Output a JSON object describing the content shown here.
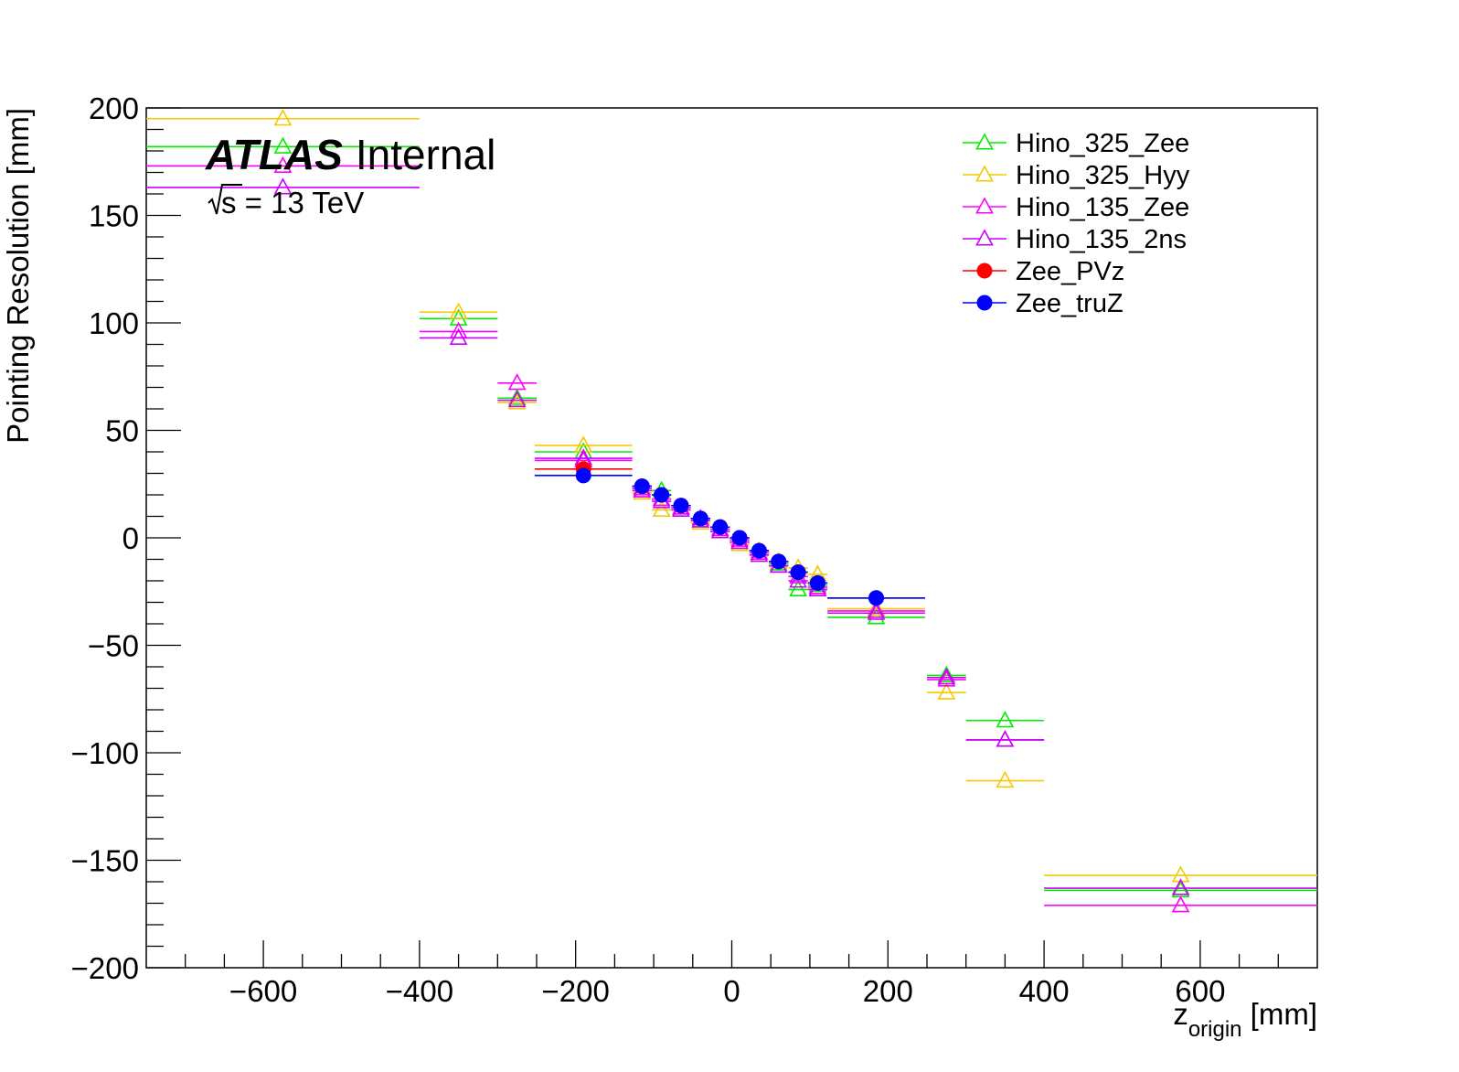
{
  "chart_data": {
    "type": "scatter",
    "title": "",
    "xlabel": "z",
    "xlabel_sub": "origin",
    "xlabel_unit": " [mm]",
    "ylabel": "Pointing Resolution [mm]",
    "xlim": [
      -750,
      750
    ],
    "ylim": [
      -200,
      200
    ],
    "x_ticks": [
      -600,
      -400,
      -200,
      0,
      200,
      400,
      600
    ],
    "x_tick_labels": [
      "−600",
      "−400",
      "−200",
      "0",
      "200",
      "400",
      "600"
    ],
    "y_ticks": [
      -200,
      -150,
      -100,
      -50,
      0,
      50,
      100,
      150,
      200
    ],
    "y_tick_labels": [
      "−200",
      "−150",
      "−100",
      "−50",
      "0",
      "50",
      "100",
      "150",
      "200"
    ],
    "grid": false,
    "legend_position": "top-right",
    "annotations": {
      "experiment": "ATLAS",
      "status": "Internal",
      "energy": "s = 13 TeV"
    },
    "series": [
      {
        "name": "Hino_325_Zee",
        "color": "#00ee00",
        "marker": "open-triangle",
        "points": [
          {
            "x": -575,
            "xerr": 175,
            "y": 182
          },
          {
            "x": -350,
            "xerr": 50,
            "y": 102
          },
          {
            "x": -275,
            "xerr": 25,
            "y": 65
          },
          {
            "x": -190,
            "xerr": 62.5,
            "y": 40
          },
          {
            "x": -115,
            "xerr": 12.5,
            "y": 23
          },
          {
            "x": -90,
            "xerr": 12.5,
            "y": 22
          },
          {
            "x": -65,
            "xerr": 12.5,
            "y": 14
          },
          {
            "x": -40,
            "xerr": 12.5,
            "y": 8
          },
          {
            "x": -15,
            "xerr": 12.5,
            "y": 4
          },
          {
            "x": 10,
            "xerr": 12.5,
            "y": -2
          },
          {
            "x": 35,
            "xerr": 12.5,
            "y": -7
          },
          {
            "x": 60,
            "xerr": 12.5,
            "y": -12
          },
          {
            "x": 85,
            "xerr": 12.5,
            "y": -24
          },
          {
            "x": 110,
            "xerr": 12.5,
            "y": -22
          },
          {
            "x": 185,
            "xerr": 62.5,
            "y": -37
          },
          {
            "x": 275,
            "xerr": 25,
            "y": -64
          },
          {
            "x": 350,
            "xerr": 50,
            "y": -85
          },
          {
            "x": 575,
            "xerr": 175,
            "y": -164
          }
        ]
      },
      {
        "name": "Hino_325_Hyy",
        "color": "#f5c800",
        "marker": "open-triangle",
        "points": [
          {
            "x": -575,
            "xerr": 175,
            "y": 195
          },
          {
            "x": -350,
            "xerr": 50,
            "y": 105
          },
          {
            "x": -275,
            "xerr": 25,
            "y": 63
          },
          {
            "x": -190,
            "xerr": 62.5,
            "y": 43
          },
          {
            "x": -115,
            "xerr": 12.5,
            "y": 21
          },
          {
            "x": -90,
            "xerr": 12.5,
            "y": 13
          },
          {
            "x": -65,
            "xerr": 12.5,
            "y": 13
          },
          {
            "x": -40,
            "xerr": 12.5,
            "y": 7
          },
          {
            "x": -15,
            "xerr": 12.5,
            "y": 3
          },
          {
            "x": 10,
            "xerr": 12.5,
            "y": -3
          },
          {
            "x": 35,
            "xerr": 12.5,
            "y": -6
          },
          {
            "x": 60,
            "xerr": 12.5,
            "y": -11
          },
          {
            "x": 85,
            "xerr": 12.5,
            "y": -14
          },
          {
            "x": 110,
            "xerr": 12.5,
            "y": -17
          },
          {
            "x": 185,
            "xerr": 62.5,
            "y": -33
          },
          {
            "x": 275,
            "xerr": 25,
            "y": -72
          },
          {
            "x": 350,
            "xerr": 50,
            "y": -113
          },
          {
            "x": 575,
            "xerr": 175,
            "y": -157
          }
        ]
      },
      {
        "name": "Hino_135_Zee",
        "color": "#ff00ff",
        "marker": "open-triangle",
        "points": [
          {
            "x": -575,
            "xerr": 175,
            "y": 173
          },
          {
            "x": -350,
            "xerr": 50,
            "y": 96
          },
          {
            "x": -275,
            "xerr": 25,
            "y": 72
          },
          {
            "x": -190,
            "xerr": 62.5,
            "y": 36
          },
          {
            "x": -115,
            "xerr": 12.5,
            "y": 23
          },
          {
            "x": -90,
            "xerr": 12.5,
            "y": 18
          },
          {
            "x": -65,
            "xerr": 12.5,
            "y": 14
          },
          {
            "x": -40,
            "xerr": 12.5,
            "y": 9
          },
          {
            "x": -15,
            "xerr": 12.5,
            "y": 4
          },
          {
            "x": 10,
            "xerr": 12.5,
            "y": -1
          },
          {
            "x": 35,
            "xerr": 12.5,
            "y": -7
          },
          {
            "x": 60,
            "xerr": 12.5,
            "y": -13
          },
          {
            "x": 85,
            "xerr": 12.5,
            "y": -18
          },
          {
            "x": 110,
            "xerr": 12.5,
            "y": -23
          },
          {
            "x": 185,
            "xerr": 62.5,
            "y": -34
          },
          {
            "x": 275,
            "xerr": 25,
            "y": -66
          },
          {
            "x": 350,
            "xerr": 50,
            "y": -94
          },
          {
            "x": 575,
            "xerr": 175,
            "y": -171
          }
        ]
      },
      {
        "name": "Hino_135_2ns",
        "color": "#cc00ff",
        "marker": "open-triangle",
        "points": [
          {
            "x": -575,
            "xerr": 175,
            "y": 163
          },
          {
            "x": -350,
            "xerr": 50,
            "y": 93
          },
          {
            "x": -275,
            "xerr": 25,
            "y": 64
          },
          {
            "x": -190,
            "xerr": 62.5,
            "y": 37
          },
          {
            "x": -115,
            "xerr": 12.5,
            "y": 22
          },
          {
            "x": -90,
            "xerr": 12.5,
            "y": 17
          },
          {
            "x": -65,
            "xerr": 12.5,
            "y": 13
          },
          {
            "x": -40,
            "xerr": 12.5,
            "y": 8
          },
          {
            "x": -15,
            "xerr": 12.5,
            "y": 3
          },
          {
            "x": 10,
            "xerr": 12.5,
            "y": -2
          },
          {
            "x": 35,
            "xerr": 12.5,
            "y": -8
          },
          {
            "x": 60,
            "xerr": 12.5,
            "y": -13
          },
          {
            "x": 85,
            "xerr": 12.5,
            "y": -20
          },
          {
            "x": 110,
            "xerr": 12.5,
            "y": -24
          },
          {
            "x": 185,
            "xerr": 62.5,
            "y": -35
          },
          {
            "x": 275,
            "xerr": 25,
            "y": -65
          },
          {
            "x": 350,
            "xerr": 50,
            "y": -94
          },
          {
            "x": 575,
            "xerr": 175,
            "y": -163
          }
        ]
      },
      {
        "name": "Zee_PVz",
        "color": "#ff0000",
        "marker": "filled-circle",
        "points": [
          {
            "x": -190,
            "xerr": 62.5,
            "y": 32
          },
          {
            "x": -115,
            "xerr": 12.5,
            "y": 24
          },
          {
            "x": -90,
            "xerr": 12.5,
            "y": 20
          },
          {
            "x": -65,
            "xerr": 12.5,
            "y": 15
          },
          {
            "x": -40,
            "xerr": 12.5,
            "y": 9
          },
          {
            "x": -15,
            "xerr": 12.5,
            "y": 5
          },
          {
            "x": 10,
            "xerr": 12.5,
            "y": 0
          },
          {
            "x": 35,
            "xerr": 12.5,
            "y": -6
          },
          {
            "x": 60,
            "xerr": 12.5,
            "y": -11
          },
          {
            "x": 85,
            "xerr": 12.5,
            "y": -16
          },
          {
            "x": 110,
            "xerr": 12.5,
            "y": -21
          },
          {
            "x": 185,
            "xerr": 62.5,
            "y": -28
          }
        ]
      },
      {
        "name": "Zee_truZ",
        "color": "#0000ff",
        "marker": "filled-circle",
        "points": [
          {
            "x": -190,
            "xerr": 62.5,
            "y": 29
          },
          {
            "x": -115,
            "xerr": 12.5,
            "y": 24
          },
          {
            "x": -90,
            "xerr": 12.5,
            "y": 20
          },
          {
            "x": -65,
            "xerr": 12.5,
            "y": 15
          },
          {
            "x": -40,
            "xerr": 12.5,
            "y": 9
          },
          {
            "x": -15,
            "xerr": 12.5,
            "y": 5
          },
          {
            "x": 10,
            "xerr": 12.5,
            "y": 0
          },
          {
            "x": 35,
            "xerr": 12.5,
            "y": -6
          },
          {
            "x": 60,
            "xerr": 12.5,
            "y": -11
          },
          {
            "x": 85,
            "xerr": 12.5,
            "y": -16
          },
          {
            "x": 110,
            "xerr": 12.5,
            "y": -21
          },
          {
            "x": 185,
            "xerr": 62.5,
            "y": -28
          }
        ]
      }
    ]
  }
}
